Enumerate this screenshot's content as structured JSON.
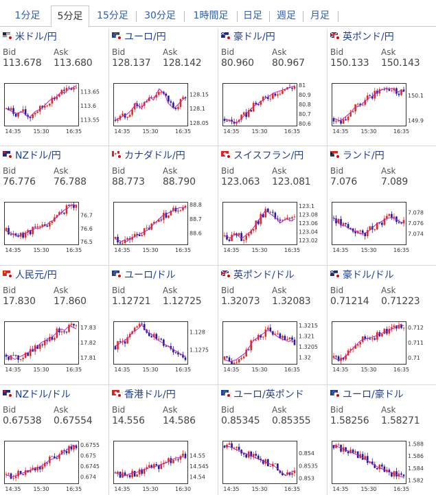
{
  "tabs": [
    {
      "label": "1分足",
      "active": false
    },
    {
      "label": "5分足",
      "active": true
    },
    {
      "label": "15分足",
      "active": false
    },
    {
      "label": "30分足",
      "active": false
    },
    {
      "label": "1時間足",
      "active": false
    },
    {
      "label": "日足",
      "active": false
    },
    {
      "label": "週足",
      "active": false
    },
    {
      "label": "月足",
      "active": false
    }
  ],
  "labels": {
    "bid": "Bid",
    "ask": "Ask"
  },
  "colors": {
    "up": "#e8281e",
    "down": "#1a1aa8",
    "ma": "#c020c0",
    "frame": "#333333",
    "link": "#1f3f8f"
  },
  "pairs": [
    {
      "name": "米ドル/円",
      "flag": "us",
      "bid": "113.678",
      "ask": "113.680",
      "chart_data": {
        "type": "candlestick",
        "yticks": [
          "113.65",
          "113.6",
          "113.55"
        ],
        "xticks": [
          "14:35",
          "15:30",
          "16:35"
        ],
        "ylim": [
          113.53,
          113.68
        ],
        "trend": [
          113.59,
          113.585,
          113.58,
          113.575,
          113.57,
          113.58,
          113.575,
          113.565,
          113.56,
          113.57,
          113.58,
          113.585,
          113.59,
          113.6,
          113.61,
          113.62,
          113.625,
          113.63,
          113.64,
          113.65,
          113.645,
          113.655,
          113.66,
          113.665,
          113.67
        ]
      }
    },
    {
      "name": "ユーロ/円",
      "flag": "eu",
      "bid": "128.137",
      "ask": "128.142",
      "chart_data": {
        "type": "candlestick",
        "yticks": [
          "128.15",
          "128.1",
          "128.05"
        ],
        "xticks": [
          "14:35",
          "15:30",
          "16:35"
        ],
        "ylim": [
          128.04,
          128.19
        ],
        "trend": [
          128.06,
          128.065,
          128.07,
          128.075,
          128.08,
          128.09,
          128.1,
          128.12,
          128.11,
          128.1,
          128.12,
          128.13,
          128.14,
          128.13,
          128.15,
          128.17,
          128.16,
          128.15,
          128.12,
          128.11,
          128.1,
          128.11,
          128.12,
          128.13,
          128.14
        ]
      }
    },
    {
      "name": "豪ドル/円",
      "flag": "au",
      "bid": "80.960",
      "ask": "80.967",
      "chart_data": {
        "type": "candlestick",
        "yticks": [
          "81",
          "80.9",
          "80.8",
          "80.7",
          "80.6"
        ],
        "xticks": [
          "14:35",
          "15:30",
          "16:35"
        ],
        "ylim": [
          80.58,
          81.02
        ],
        "trend": [
          80.65,
          80.64,
          80.63,
          80.62,
          80.61,
          80.63,
          80.66,
          80.69,
          80.72,
          80.75,
          80.78,
          80.8,
          80.82,
          80.84,
          80.86,
          80.88,
          80.9,
          80.92,
          80.93,
          80.94,
          80.95,
          80.96,
          80.97,
          80.98,
          80.99
        ]
      }
    },
    {
      "name": "英ポンド/円",
      "flag": "uk",
      "bid": "150.133",
      "ask": "150.143",
      "chart_data": {
        "type": "candlestick",
        "yticks": [
          "150.1",
          "149.9"
        ],
        "xticks": [
          "14:35",
          "15:30",
          "16:35"
        ],
        "ylim": [
          149.86,
          150.2
        ],
        "trend": [
          149.92,
          149.91,
          149.9,
          149.91,
          149.93,
          149.95,
          149.97,
          150.0,
          150.01,
          150.02,
          150.04,
          150.06,
          150.08,
          150.09,
          150.11,
          150.13,
          150.14,
          150.15,
          150.16,
          150.15,
          150.16,
          150.14,
          150.13,
          150.14,
          150.13
        ]
      }
    },
    {
      "name": "NZドル/円",
      "flag": "nz",
      "bid": "76.776",
      "ask": "76.788",
      "chart_data": {
        "type": "candlestick",
        "yticks": [
          "76.7",
          "76.6",
          "76.5"
        ],
        "xticks": [
          "14:35",
          "15:30",
          "16:35"
        ],
        "ylim": [
          76.48,
          76.8
        ],
        "trend": [
          76.58,
          76.57,
          76.56,
          76.55,
          76.54,
          76.55,
          76.56,
          76.57,
          76.58,
          76.59,
          76.6,
          76.6,
          76.61,
          76.62,
          76.63,
          76.65,
          76.66,
          76.68,
          76.7,
          76.72,
          76.74,
          76.75,
          76.77,
          76.78,
          76.77
        ]
      }
    },
    {
      "name": "カナダドル/円",
      "flag": "ca",
      "bid": "88.773",
      "ask": "88.790",
      "chart_data": {
        "type": "candlestick",
        "yticks": [
          "88.8",
          "88.7",
          "88.6"
        ],
        "xticks": [
          "14:35",
          "15:30",
          "16:35"
        ],
        "ylim": [
          88.52,
          88.82
        ],
        "trend": [
          88.56,
          88.55,
          88.54,
          88.55,
          88.54,
          88.56,
          88.57,
          88.58,
          88.59,
          88.6,
          88.61,
          88.62,
          88.64,
          88.66,
          88.68,
          88.7,
          88.72,
          88.73,
          88.74,
          88.75,
          88.76,
          88.77,
          88.78,
          88.78,
          88.78
        ]
      }
    },
    {
      "name": "スイスフラン/円",
      "flag": "ch",
      "bid": "123.063",
      "ask": "123.081",
      "chart_data": {
        "type": "candlestick",
        "yticks": [
          "123.1",
          "123.08",
          "123.06",
          "123.04",
          "123.02"
        ],
        "xticks": [
          "14:35",
          "15:30",
          "16:35"
        ],
        "ylim": [
          123.01,
          123.11
        ],
        "trend": [
          123.03,
          123.028,
          123.025,
          123.03,
          123.035,
          123.028,
          123.025,
          123.03,
          123.035,
          123.04,
          123.05,
          123.06,
          123.07,
          123.08,
          123.09,
          123.085,
          123.08,
          123.075,
          123.07,
          123.06,
          123.065,
          123.07,
          123.068,
          123.065,
          123.07
        ]
      }
    },
    {
      "name": "ランド/円",
      "flag": "za",
      "bid": "7.076",
      "ask": "7.089",
      "chart_data": {
        "type": "candlestick",
        "yticks": [
          "7.078",
          "7.076",
          "7.074"
        ],
        "xticks": [
          "14:35",
          "15:30",
          "16:35"
        ],
        "ylim": [
          7.072,
          7.08
        ],
        "trend": [
          7.077,
          7.0765,
          7.076,
          7.0755,
          7.0755,
          7.075,
          7.0748,
          7.0745,
          7.0745,
          7.074,
          7.074,
          7.0742,
          7.0745,
          7.075,
          7.0755,
          7.076,
          7.0762,
          7.0765,
          7.0768,
          7.077,
          7.077,
          7.0768,
          7.0765,
          7.0762,
          7.076
        ]
      }
    },
    {
      "name": "人民元/円",
      "flag": "cn",
      "bid": "17.830",
      "ask": "17.860",
      "chart_data": {
        "type": "candlestick",
        "yticks": [
          "17.83",
          "17.82",
          "17.81"
        ],
        "xticks": [
          "14:35",
          "15:30",
          "16:35"
        ],
        "ylim": [
          17.806,
          17.834
        ],
        "trend": [
          17.812,
          17.811,
          17.81,
          17.809,
          17.81,
          17.811,
          17.812,
          17.813,
          17.814,
          17.815,
          17.816,
          17.818,
          17.82,
          17.821,
          17.822,
          17.823,
          17.824,
          17.826,
          17.828,
          17.829,
          17.828,
          17.83,
          17.831,
          17.83,
          17.829
        ]
      }
    },
    {
      "name": "ユーロ/ドル",
      "flag": "eu",
      "bid": "1.12721",
      "ask": "1.12725",
      "chart_data": {
        "type": "candlestick",
        "yticks": [
          "1.128",
          "1.1275"
        ],
        "xticks": [
          "14:35",
          "15:30",
          "16:35"
        ],
        "ylim": [
          1.1271,
          1.1283
        ],
        "trend": [
          1.1276,
          1.12765,
          1.1277,
          1.12775,
          1.1278,
          1.1279,
          1.128,
          1.12805,
          1.1281,
          1.1282,
          1.1281,
          1.128,
          1.12795,
          1.1279,
          1.1278,
          1.12775,
          1.1277,
          1.12765,
          1.1276,
          1.12755,
          1.1275,
          1.12745,
          1.1274,
          1.12735,
          1.1273
        ]
      }
    },
    {
      "name": "英ポンド/ドル",
      "flag": "uk",
      "bid": "1.32073",
      "ask": "1.32083",
      "chart_data": {
        "type": "candlestick",
        "yticks": [
          "1.3215",
          "1.321",
          "1.3205",
          "1.32"
        ],
        "xticks": [
          "14:35",
          "15:30",
          "16:35"
        ],
        "ylim": [
          1.3197,
          1.3217
        ],
        "trend": [
          1.3199,
          1.31985,
          1.3198,
          1.31985,
          1.3199,
          1.32,
          1.3201,
          1.3202,
          1.3204,
          1.3206,
          1.3208,
          1.3209,
          1.321,
          1.3211,
          1.3212,
          1.3213,
          1.3212,
          1.3211,
          1.321,
          1.3209,
          1.32085,
          1.3208,
          1.32075,
          1.3208,
          1.3207
        ]
      }
    },
    {
      "name": "豪ドル/ドル",
      "flag": "au",
      "bid": "0.71214",
      "ask": "0.71223",
      "chart_data": {
        "type": "candlestick",
        "yticks": [
          "0.712",
          "0.711",
          "0.71"
        ],
        "xticks": [
          "14:35",
          "15:30",
          "16:35"
        ],
        "ylim": [
          0.7096,
          0.7124
        ],
        "trend": [
          0.71,
          0.7099,
          0.70985,
          0.70995,
          0.7101,
          0.7103,
          0.7105,
          0.7107,
          0.7109,
          0.7111,
          0.7112,
          0.71125,
          0.7113,
          0.71135,
          0.7114,
          0.7115,
          0.7116,
          0.71165,
          0.7117,
          0.7118,
          0.7119,
          0.712,
          0.7121,
          0.7122,
          0.7121
        ]
      }
    },
    {
      "name": "NZドル/ドル",
      "flag": "nz",
      "bid": "0.67538",
      "ask": "0.67554",
      "chart_data": {
        "type": "candlestick",
        "yticks": [
          "0.6755",
          "0.675",
          "0.6745",
          "0.674"
        ],
        "xticks": [
          "14:35",
          "15:30",
          "16:35"
        ],
        "ylim": [
          0.6737,
          0.6757
        ],
        "trend": [
          0.6741,
          0.67405,
          0.674,
          0.67405,
          0.6741,
          0.67415,
          0.6742,
          0.67425,
          0.6743,
          0.67435,
          0.6744,
          0.67445,
          0.6745,
          0.6746,
          0.6747,
          0.6748,
          0.67485,
          0.6749,
          0.675,
          0.6751,
          0.6752,
          0.6753,
          0.6754,
          0.6755,
          0.6754
        ]
      }
    },
    {
      "name": "香港ドル/円",
      "flag": "hk",
      "bid": "14.556",
      "ask": "14.586",
      "chart_data": {
        "type": "candlestick",
        "yticks": [
          "14.55",
          "14.545",
          "14.54"
        ],
        "xticks": [
          "14:35",
          "15:30",
          "16:30"
        ],
        "ylim": [
          14.537,
          14.557
        ],
        "trend": [
          14.542,
          14.5415,
          14.541,
          14.5405,
          14.541,
          14.5415,
          14.542,
          14.542,
          14.5425,
          14.543,
          14.5435,
          14.544,
          14.5445,
          14.5445,
          14.545,
          14.5455,
          14.546,
          14.5465,
          14.547,
          14.548,
          14.5485,
          14.549,
          14.549,
          14.5495,
          14.549
        ]
      }
    },
    {
      "name": "ユーロ/英ポンド",
      "flag": "eu",
      "bid": "0.85345",
      "ask": "0.85355",
      "chart_data": {
        "type": "candlestick",
        "yticks": [
          "0.854",
          "0.8535",
          "0.853"
        ],
        "xticks": [
          "14:35",
          "15:30",
          "16:35"
        ],
        "ylim": [
          0.8528,
          0.8545
        ],
        "trend": [
          0.8543,
          0.85428,
          0.85425,
          0.8542,
          0.85415,
          0.8541,
          0.85405,
          0.854,
          0.85395,
          0.8539,
          0.85385,
          0.8538,
          0.85375,
          0.8537,
          0.85365,
          0.8536,
          0.85355,
          0.8535,
          0.8534,
          0.8533,
          0.8532,
          0.8531,
          0.8532,
          0.85325,
          0.8533
        ]
      }
    },
    {
      "name": "ユーロ/豪ドル",
      "flag": "eu",
      "bid": "1.58256",
      "ask": "1.58271",
      "chart_data": {
        "type": "candlestick",
        "yticks": [
          "1.588",
          "1.586",
          "1.584",
          "1.582"
        ],
        "xticks": [
          "14:35",
          "15:30",
          "16:35"
        ],
        "ylim": [
          1.5815,
          1.5885
        ],
        "trend": [
          1.5878,
          1.5876,
          1.5874,
          1.5872,
          1.587,
          1.5868,
          1.5866,
          1.5864,
          1.5862,
          1.586,
          1.5857,
          1.5854,
          1.5851,
          1.5848,
          1.5845,
          1.5842,
          1.584,
          1.5838,
          1.5836,
          1.5834,
          1.5832,
          1.583,
          1.5828,
          1.5826,
          1.5825
        ]
      }
    }
  ]
}
